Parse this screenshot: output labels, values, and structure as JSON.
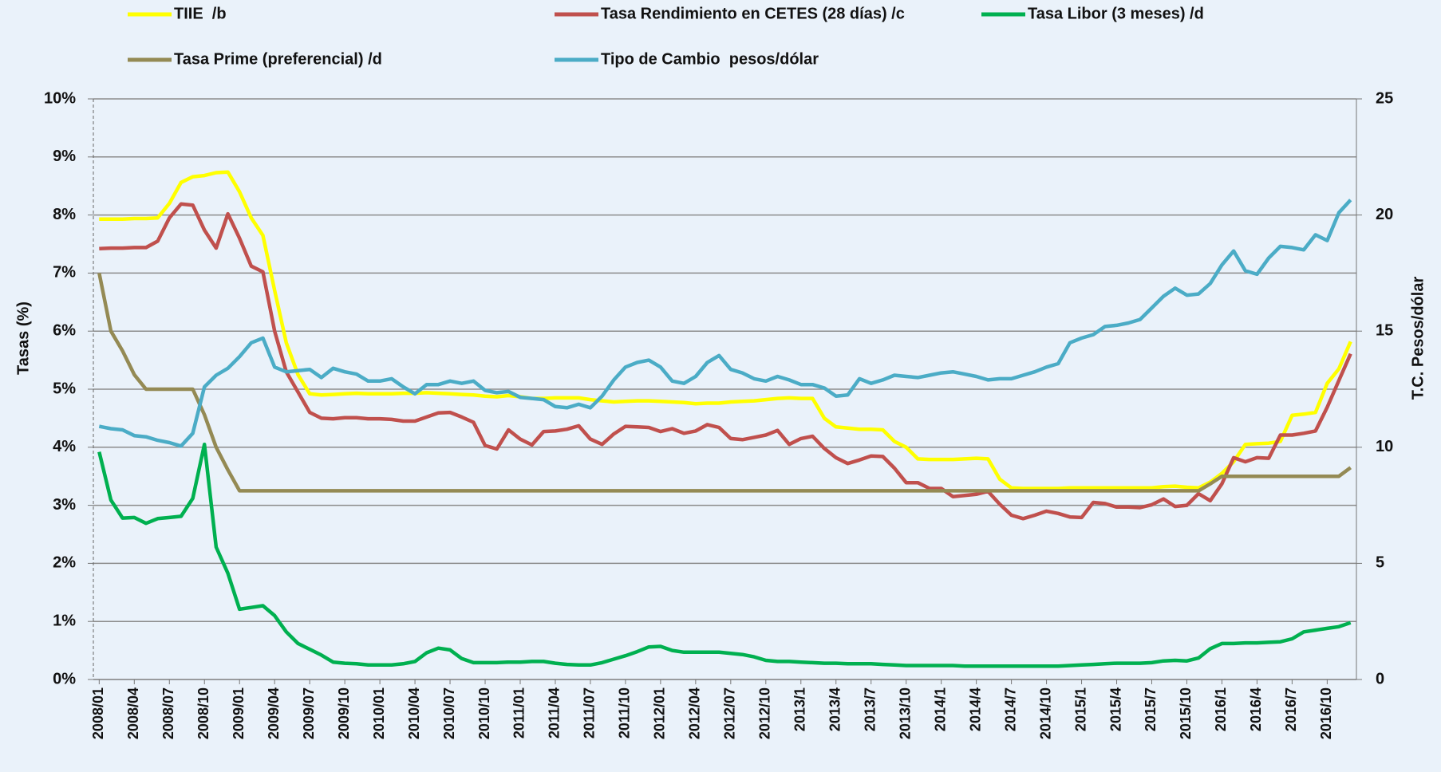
{
  "chart_data": {
    "type": "line",
    "ylabel": "Tasas (%)",
    "y2label": "T.C. Pesos/dólar",
    "categories": [
      "2008/01",
      null,
      null,
      "2008/04",
      null,
      null,
      "2008/07",
      null,
      null,
      "2008/10",
      null,
      null,
      "2009/01",
      null,
      null,
      "2009/04",
      null,
      null,
      "2009/07",
      null,
      null,
      "2009/10",
      null,
      null,
      "2010/01",
      null,
      null,
      "2010/04",
      null,
      null,
      "2010/07",
      null,
      null,
      "2010/10",
      null,
      null,
      "2011/01",
      null,
      null,
      "2011/04",
      null,
      null,
      "2011/07",
      null,
      null,
      "2011/10",
      null,
      null,
      "2012/01",
      null,
      null,
      "2012/04",
      null,
      null,
      "2012/07",
      null,
      null,
      "2012/10",
      null,
      null,
      "2013/1",
      null,
      null,
      "2013/4",
      null,
      null,
      "2013/7",
      null,
      null,
      "2013/10",
      null,
      null,
      "2014/1",
      null,
      null,
      "2014/4",
      null,
      null,
      "2014/7",
      null,
      null,
      "2014/10",
      null,
      null,
      "2015/1",
      null,
      null,
      "2015/4",
      null,
      null,
      "2015/7",
      null,
      null,
      "2015/10",
      null,
      null,
      "2016/1",
      null,
      null,
      "2016/4",
      null,
      null,
      "2016/7",
      null,
      null,
      "2016/10",
      null,
      null
    ],
    "ylim": [
      0,
      10
    ],
    "yticks": [
      {
        "value": 0,
        "label": "0%"
      },
      {
        "value": 1,
        "label": "1%"
      },
      {
        "value": 2,
        "label": "2%"
      },
      {
        "value": 3,
        "label": "3%"
      },
      {
        "value": 4,
        "label": "4%"
      },
      {
        "value": 5,
        "label": "5%"
      },
      {
        "value": 6,
        "label": "6%"
      },
      {
        "value": 7,
        "label": "7%"
      },
      {
        "value": 8,
        "label": "8%"
      },
      {
        "value": 9,
        "label": "9%"
      },
      {
        "value": 10,
        "label": "10%"
      }
    ],
    "y2lim": [
      0,
      25
    ],
    "y2ticks": [
      0,
      5,
      10,
      15,
      20,
      25
    ],
    "grid": true,
    "series": [
      {
        "name": "TIIE  /b",
        "color": "#ffff00",
        "values": [
          7.93,
          7.93,
          7.93,
          7.94,
          7.94,
          7.95,
          8.2,
          8.56,
          8.66,
          8.68,
          8.73,
          8.74,
          8.4,
          7.95,
          7.65,
          6.7,
          5.8,
          5.25,
          4.92,
          4.9,
          4.91,
          4.92,
          4.93,
          4.92,
          4.92,
          4.92,
          4.93,
          4.93,
          4.94,
          4.93,
          4.92,
          4.91,
          4.9,
          4.88,
          4.87,
          4.89,
          4.87,
          4.84,
          4.84,
          4.85,
          4.85,
          4.85,
          4.82,
          4.8,
          4.78,
          4.79,
          4.8,
          4.8,
          4.79,
          4.78,
          4.77,
          4.75,
          4.76,
          4.76,
          4.78,
          4.79,
          4.8,
          4.82,
          4.84,
          4.85,
          4.84,
          4.84,
          4.5,
          4.35,
          4.33,
          4.31,
          4.31,
          4.3,
          4.1,
          4.0,
          3.8,
          3.79,
          3.79,
          3.79,
          3.8,
          3.81,
          3.8,
          3.45,
          3.3,
          3.29,
          3.29,
          3.29,
          3.29,
          3.3,
          3.3,
          3.3,
          3.3,
          3.3,
          3.3,
          3.3,
          3.3,
          3.32,
          3.33,
          3.31,
          3.3,
          3.4,
          3.55,
          3.75,
          4.05,
          4.06,
          4.07,
          4.1,
          4.55,
          4.57,
          4.6,
          5.1,
          5.35,
          5.82
        ]
      },
      {
        "name": "Tasa Rendimiento en CETES (28 días) /c",
        "color": "#c0504d",
        "values": [
          7.42,
          7.43,
          7.43,
          7.44,
          7.44,
          7.55,
          7.95,
          8.19,
          8.17,
          7.74,
          7.43,
          8.02,
          7.6,
          7.12,
          7.02,
          6.0,
          5.3,
          4.95,
          4.6,
          4.5,
          4.49,
          4.51,
          4.51,
          4.49,
          4.49,
          4.48,
          4.45,
          4.45,
          4.52,
          4.59,
          4.6,
          4.52,
          4.43,
          4.03,
          3.97,
          4.3,
          4.14,
          4.04,
          4.27,
          4.28,
          4.31,
          4.37,
          4.14,
          4.05,
          4.23,
          4.36,
          4.35,
          4.34,
          4.27,
          4.32,
          4.24,
          4.28,
          4.39,
          4.34,
          4.15,
          4.13,
          4.17,
          4.21,
          4.29,
          4.05,
          4.15,
          4.19,
          3.98,
          3.82,
          3.72,
          3.78,
          3.85,
          3.84,
          3.64,
          3.39,
          3.39,
          3.29,
          3.29,
          3.15,
          3.17,
          3.19,
          3.24,
          3.02,
          2.83,
          2.77,
          2.83,
          2.9,
          2.86,
          2.8,
          2.79,
          3.05,
          3.03,
          2.97,
          2.97,
          2.96,
          3.01,
          3.11,
          2.98,
          3.0,
          3.2,
          3.08,
          3.37,
          3.82,
          3.75,
          3.82,
          3.81,
          4.21,
          4.21,
          4.24,
          4.28,
          4.69,
          5.15,
          5.61
        ]
      },
      {
        "name": "Tasa Libor (3 meses) /d",
        "color": "#00b050",
        "values": [
          3.92,
          3.09,
          2.78,
          2.79,
          2.69,
          2.77,
          2.79,
          2.81,
          3.12,
          4.05,
          2.28,
          1.83,
          1.21,
          1.24,
          1.27,
          1.1,
          0.82,
          0.62,
          0.52,
          0.42,
          0.3,
          0.28,
          0.27,
          0.25,
          0.25,
          0.25,
          0.27,
          0.31,
          0.46,
          0.54,
          0.51,
          0.36,
          0.29,
          0.29,
          0.29,
          0.3,
          0.3,
          0.31,
          0.31,
          0.28,
          0.26,
          0.25,
          0.25,
          0.29,
          0.35,
          0.41,
          0.48,
          0.56,
          0.57,
          0.5,
          0.47,
          0.47,
          0.47,
          0.47,
          0.45,
          0.43,
          0.39,
          0.33,
          0.31,
          0.31,
          0.3,
          0.29,
          0.28,
          0.28,
          0.27,
          0.27,
          0.27,
          0.26,
          0.25,
          0.24,
          0.24,
          0.24,
          0.24,
          0.24,
          0.23,
          0.23,
          0.23,
          0.23,
          0.23,
          0.23,
          0.23,
          0.23,
          0.23,
          0.24,
          0.25,
          0.26,
          0.27,
          0.28,
          0.28,
          0.28,
          0.29,
          0.32,
          0.33,
          0.32,
          0.37,
          0.53,
          0.62,
          0.62,
          0.63,
          0.63,
          0.64,
          0.65,
          0.7,
          0.82,
          0.85,
          0.88,
          0.91,
          0.98
        ]
      },
      {
        "name": "Tasa Prime (preferencial) /d",
        "color": "#948a54",
        "values": [
          7.0,
          6.0,
          5.66,
          5.25,
          5.0,
          5.0,
          5.0,
          5.0,
          5.0,
          4.56,
          4.0,
          3.61,
          3.25,
          3.25,
          3.25,
          3.25,
          3.25,
          3.25,
          3.25,
          3.25,
          3.25,
          3.25,
          3.25,
          3.25,
          3.25,
          3.25,
          3.25,
          3.25,
          3.25,
          3.25,
          3.25,
          3.25,
          3.25,
          3.25,
          3.25,
          3.25,
          3.25,
          3.25,
          3.25,
          3.25,
          3.25,
          3.25,
          3.25,
          3.25,
          3.25,
          3.25,
          3.25,
          3.25,
          3.25,
          3.25,
          3.25,
          3.25,
          3.25,
          3.25,
          3.25,
          3.25,
          3.25,
          3.25,
          3.25,
          3.25,
          3.25,
          3.25,
          3.25,
          3.25,
          3.25,
          3.25,
          3.25,
          3.25,
          3.25,
          3.25,
          3.25,
          3.25,
          3.25,
          3.25,
          3.25,
          3.25,
          3.25,
          3.25,
          3.25,
          3.25,
          3.25,
          3.25,
          3.25,
          3.25,
          3.25,
          3.25,
          3.25,
          3.25,
          3.25,
          3.25,
          3.25,
          3.25,
          3.25,
          3.25,
          3.25,
          3.37,
          3.5,
          3.5,
          3.5,
          3.5,
          3.5,
          3.5,
          3.5,
          3.5,
          3.5,
          3.5,
          3.5,
          3.65
        ]
      },
      {
        "name": "Tipo de Cambio  pesos/dólar",
        "color": "#4bacc6",
        "axis": "y2",
        "values": [
          10.9,
          10.8,
          10.75,
          10.5,
          10.45,
          10.3,
          10.2,
          10.05,
          10.6,
          12.6,
          13.1,
          13.4,
          13.9,
          14.5,
          14.7,
          13.45,
          13.25,
          13.3,
          13.35,
          13.0,
          13.4,
          13.25,
          13.15,
          12.85,
          12.85,
          12.95,
          12.6,
          12.3,
          12.7,
          12.7,
          12.85,
          12.75,
          12.85,
          12.45,
          12.35,
          12.4,
          12.15,
          12.1,
          12.05,
          11.75,
          11.7,
          11.85,
          11.7,
          12.2,
          12.9,
          13.45,
          13.65,
          13.75,
          13.45,
          12.85,
          12.75,
          13.05,
          13.65,
          13.95,
          13.35,
          13.2,
          12.95,
          12.85,
          13.05,
          12.9,
          12.7,
          12.7,
          12.55,
          12.2,
          12.25,
          12.95,
          12.75,
          12.9,
          13.1,
          13.05,
          13.0,
          13.1,
          13.2,
          13.25,
          13.15,
          13.05,
          12.9,
          12.95,
          12.95,
          13.1,
          13.25,
          13.45,
          13.6,
          14.5,
          14.7,
          14.85,
          15.2,
          15.25,
          15.35,
          15.5,
          16.0,
          16.5,
          16.85,
          16.55,
          16.6,
          17.05,
          17.85,
          18.45,
          17.6,
          17.45,
          18.15,
          18.65,
          18.6,
          18.5,
          19.15,
          18.9,
          20.1,
          20.65
        ]
      }
    ]
  }
}
